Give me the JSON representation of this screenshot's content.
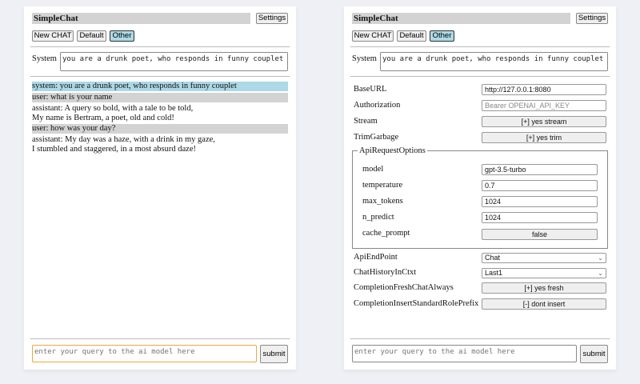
{
  "left": {
    "title": "SimpleChat",
    "settings_label": "Settings",
    "buttons": [
      "New CHAT",
      "Default",
      "Other"
    ],
    "selected_button": "Other",
    "system_label": "System",
    "system_value": "you are a drunk poet, who responds in funny couplet",
    "messages": [
      {
        "role": "system",
        "lines": [
          "system: you are a drunk poet, who responds in funny couplet"
        ]
      },
      {
        "role": "user",
        "lines": [
          "user: what is your name"
        ]
      },
      {
        "role": "assistant",
        "lines": [
          "assistant: A query so bold, with a tale to be told,",
          "My name is Bertram, a poet, old and cold!"
        ]
      },
      {
        "role": "user",
        "lines": [
          "user: how was your day?"
        ]
      },
      {
        "role": "assistant",
        "lines": [
          "assistant: My day was a haze, with a drink in my gaze,",
          "I stumbled and staggered, in a most absurd daze!"
        ]
      }
    ],
    "query_placeholder": "enter your query to the ai model here",
    "submit_label": "submit"
  },
  "right": {
    "title": "SimpleChat",
    "settings_label": "Settings",
    "buttons": [
      "New CHAT",
      "Default",
      "Other"
    ],
    "selected_button": "Other",
    "system_label": "System",
    "system_value": "you are a drunk poet, who responds in funny couplet",
    "settings": {
      "baseurl": {
        "label": "BaseURL",
        "value": "http://127.0.0.1:8080"
      },
      "authorization": {
        "label": "Authorization",
        "placeholder": "Bearer OPENAI_API_KEY"
      },
      "stream": {
        "label": "Stream",
        "value": "[+] yes stream"
      },
      "trimgarbage": {
        "label": "TrimGarbage",
        "value": "[+] yes trim"
      },
      "apirequestoptions": {
        "legend": "ApiRequestOptions",
        "model": {
          "label": "model",
          "value": "gpt-3.5-turbo"
        },
        "temperature": {
          "label": "temperature",
          "value": "0.7"
        },
        "max_tokens": {
          "label": "max_tokens",
          "value": "1024"
        },
        "n_predict": {
          "label": "n_predict",
          "value": "1024"
        },
        "cache_prompt": {
          "label": "cache_prompt",
          "value": "false"
        }
      },
      "apiendpoint": {
        "label": "ApiEndPoint",
        "value": "Chat"
      },
      "chathistory": {
        "label": "ChatHistoryInCtxt",
        "value": "Last1"
      },
      "freshchat": {
        "label": "CompletionFreshChatAlways",
        "value": "[+] yes fresh"
      },
      "insertprefix": {
        "label": "CompletionInsertStandardRolePrefix",
        "value": "[-] dont insert"
      }
    },
    "query_placeholder": "enter your query to the ai model here",
    "submit_label": "submit"
  },
  "colors": {
    "selected": "#add8e6",
    "user_row": "#d3d3d3",
    "focus": "#e8a93c"
  }
}
